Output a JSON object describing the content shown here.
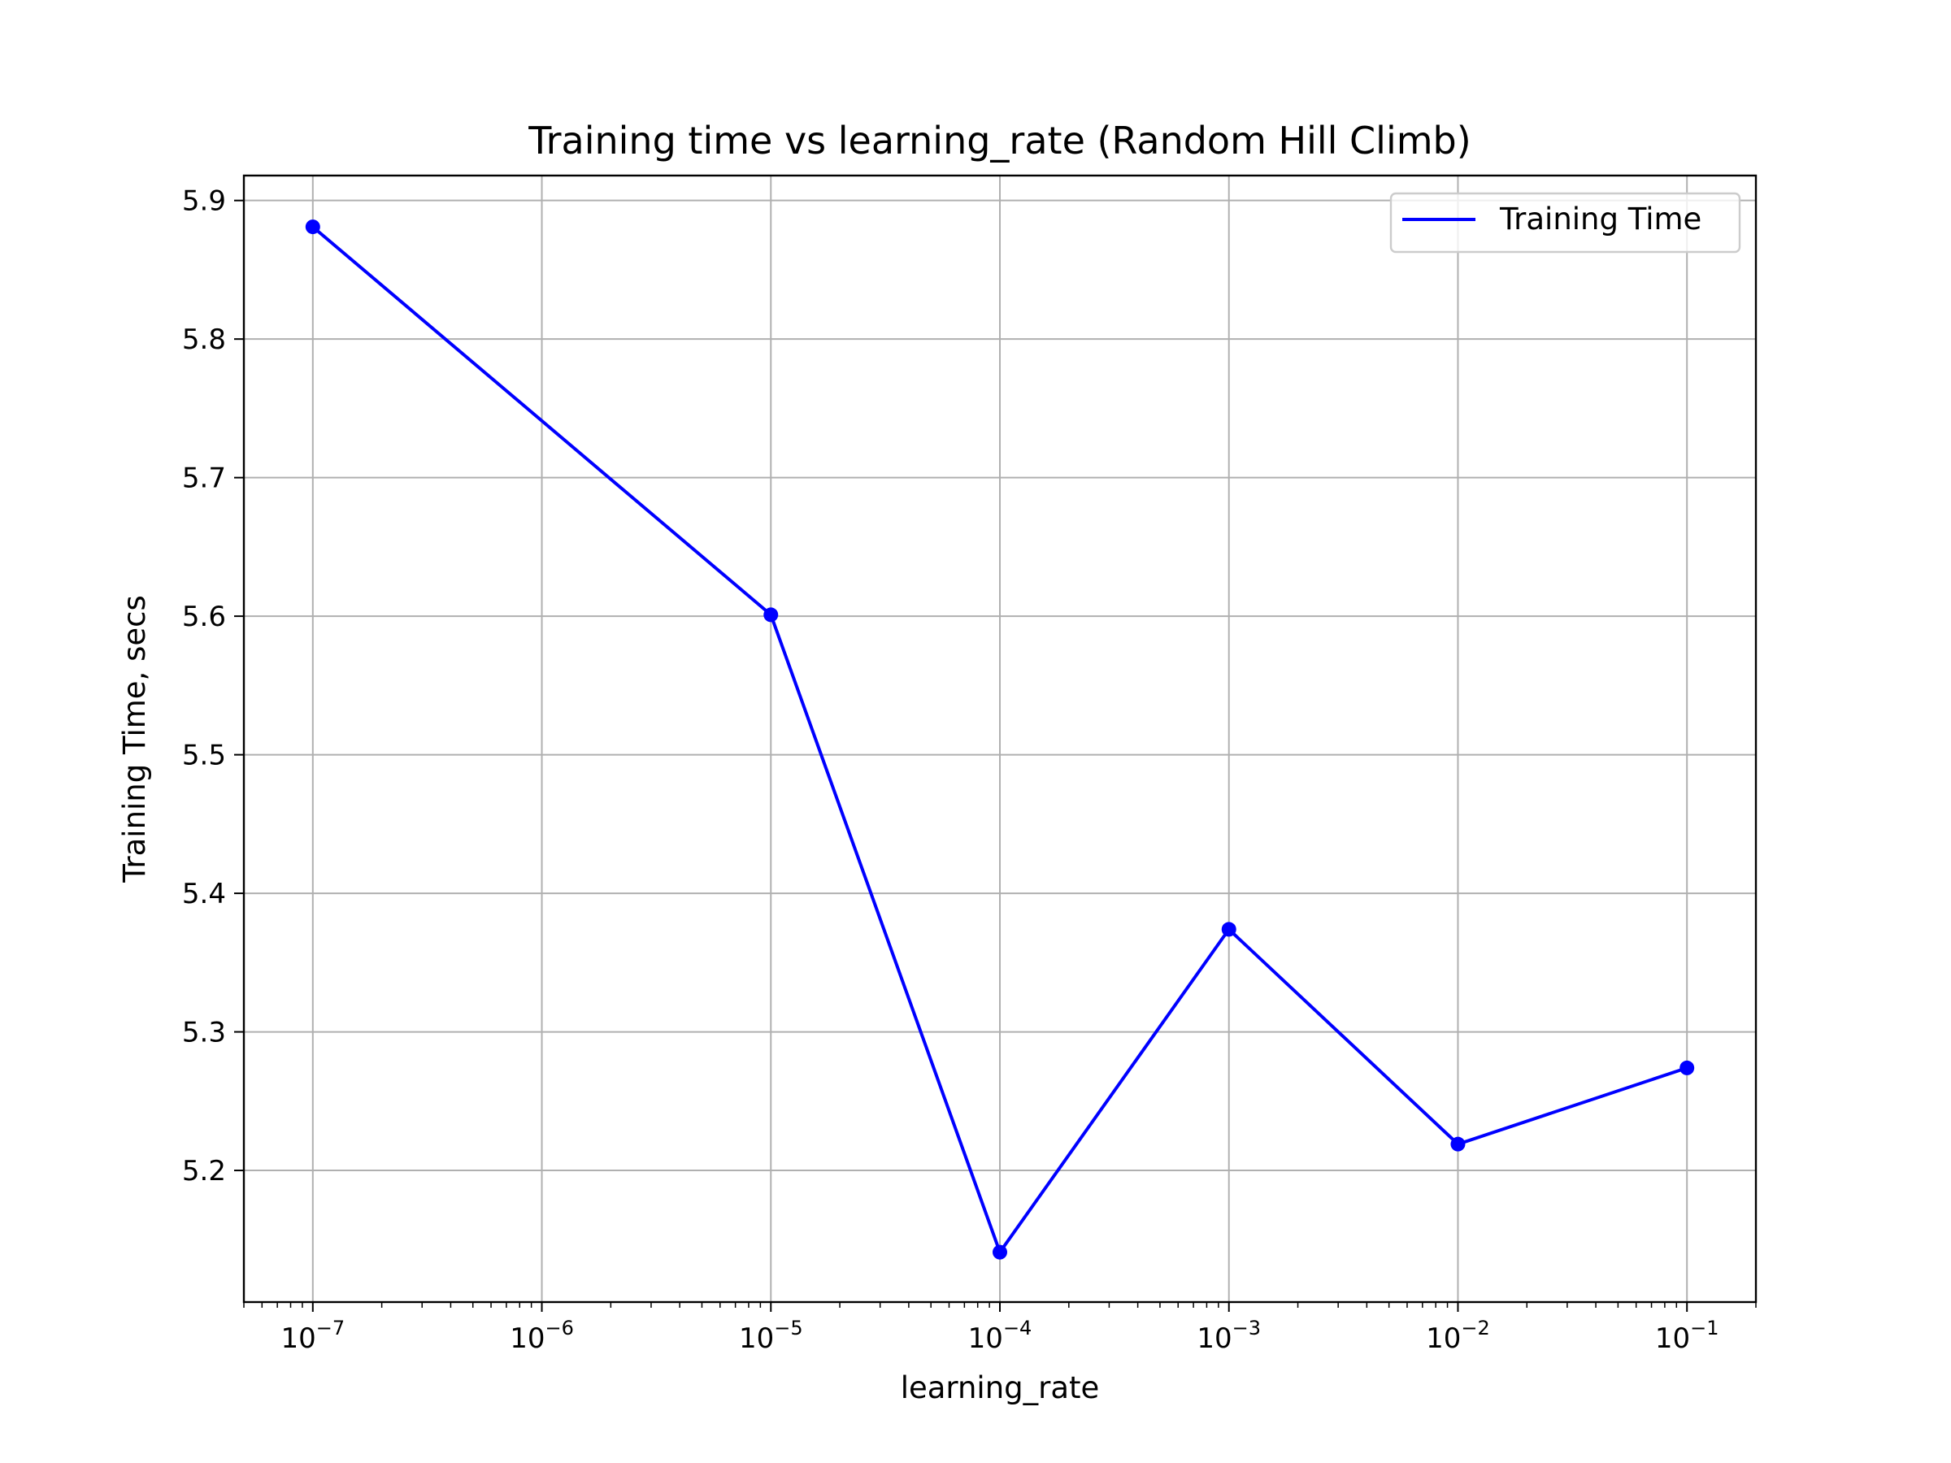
{
  "chart_data": {
    "type": "line",
    "title": "Training time vs learning_rate (Random Hill Climb)",
    "xlabel": "learning_rate",
    "ylabel": "Training Time, secs",
    "x_scale": "log",
    "xlim": [
      5e-08,
      0.2
    ],
    "ylim": [
      5.105,
      5.918
    ],
    "grid": true,
    "legend_position": "top-right",
    "x_ticks": [
      {
        "exp": "−7",
        "value": 1e-07
      },
      {
        "exp": "−6",
        "value": 1e-06
      },
      {
        "exp": "−5",
        "value": 1e-05
      },
      {
        "exp": "−4",
        "value": 0.0001
      },
      {
        "exp": "−3",
        "value": 0.001
      },
      {
        "exp": "−2",
        "value": 0.01
      },
      {
        "exp": "−1",
        "value": 0.1
      }
    ],
    "tick_base": "10",
    "y_ticks": [
      "5.2",
      "5.3",
      "5.4",
      "5.5",
      "5.6",
      "5.7",
      "5.8",
      "5.9"
    ],
    "series": [
      {
        "name": "Training Time",
        "color": "#0000ff",
        "x": [
          1e-07,
          1e-05,
          0.0001,
          0.001,
          0.01,
          0.1
        ],
        "y": [
          5.881,
          5.601,
          5.141,
          5.374,
          5.219,
          5.274
        ]
      }
    ]
  }
}
